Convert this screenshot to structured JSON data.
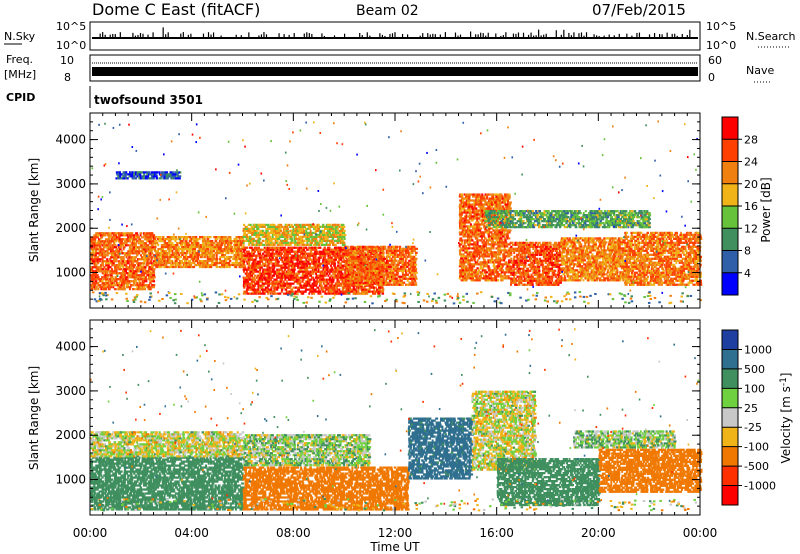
{
  "header": {
    "station": "Dome C East (fitACF)",
    "beam": "Beam 02",
    "date": "07/Feb/2015"
  },
  "nsky": {
    "label": "N.Sky",
    "tick_hi": "10^5",
    "tick_lo": "10^0",
    "right_label": "N.Search",
    "right_hi": "10^5",
    "right_lo": "10^0"
  },
  "freq": {
    "label_line1": "Freq.",
    "label_line2": "[MHz]",
    "tick_hi": "10",
    "tick_lo": "8",
    "right_label": "Nave",
    "right_hi": "60",
    "right_lo": "0"
  },
  "cpid": {
    "label": "CPID",
    "value": "twofsound 3501"
  },
  "chart_data": [
    {
      "type": "heatmap",
      "name": "power",
      "ylabel": "Slant Range [km]",
      "yticks": [
        "1000",
        "2000",
        "3000",
        "4000"
      ],
      "ylim": [
        200,
        4600
      ],
      "colorbar_label": "Power [dB]",
      "colorbar_ticks": [
        "4",
        "8",
        "12",
        "16",
        "20",
        "24",
        "28"
      ],
      "colorbar_colors": [
        "#0000ff",
        "#2f5fa8",
        "#3f8f5f",
        "#66c23a",
        "#f0b418",
        "#f08010",
        "#ff4000",
        "#ff0000"
      ],
      "clim": [
        0,
        32
      ],
      "regions": [
        {
          "t0": 0.0,
          "t1": 2.5,
          "r0": 600,
          "r1": 1900,
          "value": 24
        },
        {
          "t0": 2.5,
          "t1": 6.0,
          "r0": 1100,
          "r1": 1800,
          "value": 22
        },
        {
          "t0": 6.0,
          "t1": 11.5,
          "r0": 500,
          "r1": 1600,
          "value": 27
        },
        {
          "t0": 6.0,
          "t1": 10.0,
          "r0": 1600,
          "r1": 2100,
          "value": 18
        },
        {
          "t0": 10.0,
          "t1": 12.8,
          "r0": 700,
          "r1": 1600,
          "value": 24
        },
        {
          "t0": 14.5,
          "t1": 16.5,
          "r0": 800,
          "r1": 2800,
          "value": 24
        },
        {
          "t0": 16.5,
          "t1": 18.5,
          "r0": 700,
          "r1": 1700,
          "value": 25
        },
        {
          "t0": 18.5,
          "t1": 21.0,
          "r0": 800,
          "r1": 1800,
          "value": 22
        },
        {
          "t0": 21.0,
          "t1": 24.0,
          "r0": 700,
          "r1": 1900,
          "value": 23
        },
        {
          "t0": 1.0,
          "t1": 3.5,
          "r0": 3100,
          "r1": 3300,
          "value": 6
        },
        {
          "t0": 15.5,
          "t1": 22.0,
          "r0": 2000,
          "r1": 2400,
          "value": 12
        }
      ]
    },
    {
      "type": "heatmap",
      "name": "velocity",
      "ylabel": "Slant Range [km]",
      "yticks": [
        "1000",
        "2000",
        "3000",
        "4000"
      ],
      "ylim": [
        200,
        4600
      ],
      "colorbar_label": "Velocity [m s",
      "colorbar_label_sup": "-1",
      "colorbar_label_end": "]",
      "colorbar_ticks": [
        "1000",
        "500",
        "100",
        "25",
        "-25",
        "-100",
        "-500",
        "-1000"
      ],
      "colorbar_colors": [
        "#1f3fa0",
        "#2f6f8f",
        "#3f8f5f",
        "#6fd040",
        "#c8c8c8",
        "#f0b418",
        "#f07800",
        "#ff3000",
        "#ff0000"
      ],
      "regions": [
        {
          "t0": 0.0,
          "t1": 6.0,
          "r0": 300,
          "r1": 1500,
          "value": 300
        },
        {
          "t0": 0.0,
          "t1": 6.0,
          "r0": 1500,
          "r1": 2100,
          "value": 0
        },
        {
          "t0": 6.0,
          "t1": 12.5,
          "r0": 300,
          "r1": 1300,
          "value": -300
        },
        {
          "t0": 6.0,
          "t1": 11.0,
          "r0": 1300,
          "r1": 2000,
          "value": 50
        },
        {
          "t0": 12.5,
          "t1": 15.0,
          "r0": 1000,
          "r1": 2400,
          "value": 600
        },
        {
          "t0": 15.0,
          "t1": 17.5,
          "r0": 1200,
          "r1": 3000,
          "value": 0
        },
        {
          "t0": 16.0,
          "t1": 20.0,
          "r0": 400,
          "r1": 1500,
          "value": 300
        },
        {
          "t0": 20.0,
          "t1": 24.0,
          "r0": 700,
          "r1": 1700,
          "value": -300
        },
        {
          "t0": 19.0,
          "t1": 23.0,
          "r0": 1700,
          "r1": 2100,
          "value": 60
        }
      ]
    }
  ],
  "xaxis": {
    "label": "Time UT",
    "ticks": [
      "00:00",
      "04:00",
      "08:00",
      "12:00",
      "16:00",
      "20:00",
      "00:00"
    ]
  }
}
